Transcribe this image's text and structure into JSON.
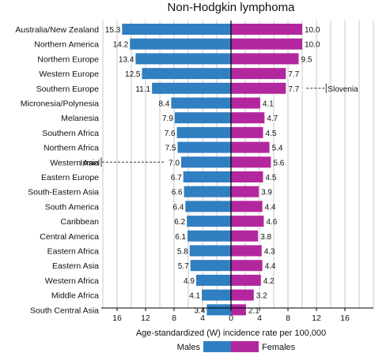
{
  "chart_data": {
    "type": "bar",
    "title": "Non-Hodgkin lymphoma",
    "xlabel": "Age-standardized (W) incidence rate per 100,000",
    "xlim": [
      -20,
      20
    ],
    "xticks": [
      16,
      12,
      8,
      4,
      0,
      4,
      8,
      12,
      16
    ],
    "grid": true,
    "legend_position": "bottom",
    "categories": [
      "Australia/New Zealand",
      "Northern America",
      "Northern Europe",
      "Western Europe",
      "Southern Europe",
      "Micronesia/Polynesia",
      "Melanesia",
      "Southern Africa",
      "Northern Africa",
      "Western Asia",
      "Eastern Europe",
      "South-Eastern Asia",
      "South America",
      "Caribbean",
      "Central America",
      "Eastern Africa",
      "Eastern Asia",
      "Western Africa",
      "Middle Africa",
      "South Central Asia"
    ],
    "series": [
      {
        "name": "Males",
        "color": "#2f7fc1",
        "values": [
          15.3,
          14.2,
          13.4,
          12.5,
          11.1,
          8.4,
          7.9,
          7.6,
          7.5,
          7.0,
          6.7,
          6.6,
          6.4,
          6.2,
          6.1,
          5.8,
          5.7,
          4.9,
          4.1,
          3.4
        ]
      },
      {
        "name": "Females",
        "color": "#b3279e",
        "values": [
          10.0,
          10.0,
          9.5,
          7.7,
          7.7,
          4.1,
          4.7,
          4.5,
          5.4,
          5.6,
          4.5,
          3.9,
          4.4,
          4.6,
          3.8,
          4.3,
          4.4,
          4.2,
          3.2,
          2.1
        ]
      }
    ],
    "value_labels": {
      "Males": [
        "15.3",
        "14.2",
        "13.4",
        "12.5",
        "11.1",
        "8.4",
        "7.9",
        "7.6",
        "7.5",
        "7.0",
        "6.7",
        "6.6",
        "6.4",
        "6.2",
        "6.1",
        "5.8",
        "5.7",
        "4.9",
        "4.1",
        "3.4"
      ],
      "Females": [
        "10.0",
        "10.0",
        "9.5",
        "7.7",
        "7.7",
        "4.1",
        "4.7",
        "4.5",
        "5.4",
        "5.6",
        "4.5",
        "3.9",
        "4.4",
        "4.6",
        "3.8",
        "4.3",
        "4.4",
        "4.2",
        "3.2",
        "2.1"
      ]
    },
    "annotations": [
      {
        "text": "Slovenia",
        "series": "Females",
        "category": "Southern Europe"
      },
      {
        "text": "Israel",
        "series": "Males",
        "category": "Western Asia"
      }
    ]
  }
}
